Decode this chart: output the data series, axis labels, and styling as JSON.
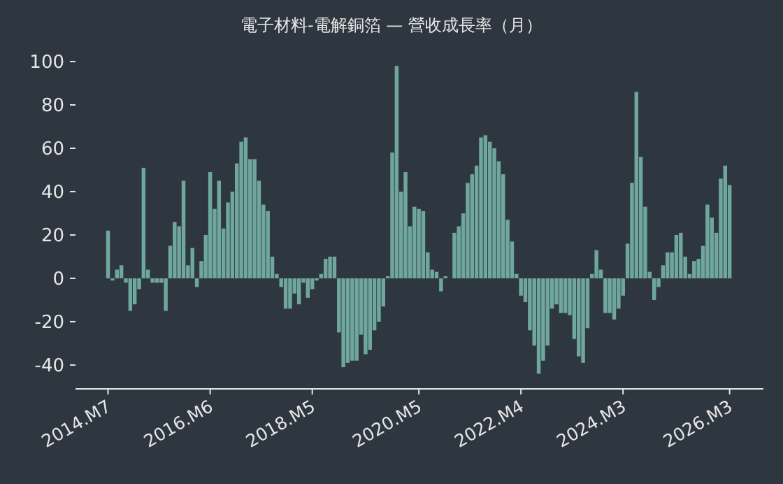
{
  "chart_data": {
    "type": "bar",
    "title": "電子材料-電解銅箔 — 營收成長率（月）",
    "categories": [
      "2014.M7",
      null,
      null,
      null,
      null,
      null,
      null,
      null,
      null,
      null,
      null,
      null,
      null,
      null,
      null,
      null,
      null,
      null,
      null,
      null,
      null,
      null,
      null,
      "2016.M6",
      null,
      null,
      null,
      null,
      null,
      null,
      null,
      null,
      null,
      null,
      null,
      null,
      null,
      null,
      null,
      null,
      null,
      null,
      null,
      null,
      null,
      null,
      "2018.M5",
      null,
      null,
      null,
      null,
      null,
      null,
      null,
      null,
      null,
      null,
      null,
      null,
      null,
      null,
      null,
      null,
      null,
      null,
      null,
      null,
      null,
      null,
      null,
      "2020.M5",
      null,
      null,
      null,
      null,
      null,
      null,
      null,
      null,
      null,
      null,
      null,
      null,
      null,
      null,
      null,
      null,
      null,
      null,
      null,
      null,
      null,
      null,
      "2022.M4",
      null,
      null,
      null,
      null,
      null,
      null,
      null,
      null,
      null,
      null,
      null,
      null,
      null,
      null,
      null,
      null,
      null,
      null,
      null,
      null,
      null,
      null,
      "2024.M3",
      null,
      null,
      null,
      null,
      null,
      null,
      null,
      null,
      null,
      null,
      null,
      null,
      null,
      null,
      null,
      null,
      null,
      null,
      null,
      null,
      null,
      null,
      null,
      "2026.M3"
    ],
    "values": [
      22,
      -1,
      4,
      6,
      -2,
      -15,
      -12,
      -5,
      51,
      4,
      -2,
      -2,
      -2,
      -15,
      15,
      26,
      24,
      45,
      6,
      14,
      -4,
      8,
      20,
      49,
      32,
      45,
      23,
      35,
      40,
      53,
      63,
      65,
      55,
      55,
      45,
      34,
      31,
      10,
      2,
      -4,
      -14,
      -14,
      -7,
      -12,
      -2,
      -9,
      -5,
      -1,
      2,
      9,
      10,
      10,
      -25,
      -41,
      -39,
      -38,
      -38,
      -26,
      -35,
      -33,
      -24,
      -20,
      -13,
      1,
      58,
      98,
      40,
      49,
      24,
      33,
      32,
      31,
      12,
      4,
      3,
      -6,
      1,
      0,
      21,
      24,
      30,
      44,
      48,
      52,
      65,
      66,
      63,
      60,
      54,
      48,
      27,
      17,
      2,
      -8,
      -11,
      -24,
      -31,
      -44,
      -38,
      -31,
      -14,
      -12,
      -16,
      -16,
      -17,
      -28,
      -36,
      -39,
      -23,
      2,
      13,
      4,
      -16,
      -16,
      -19,
      -14,
      -8,
      16,
      44,
      86,
      56,
      33,
      3,
      -10,
      -4,
      6,
      12,
      12,
      20,
      21,
      10,
      2,
      8,
      9,
      15,
      34,
      28,
      21,
      46,
      52,
      43
    ],
    "color": "#6fa79c",
    "ylim": [
      -51,
      100
    ],
    "yticks": [
      -40,
      -20,
      0,
      20,
      40,
      60,
      80,
      100
    ],
    "grid": false,
    "legend": false
  }
}
